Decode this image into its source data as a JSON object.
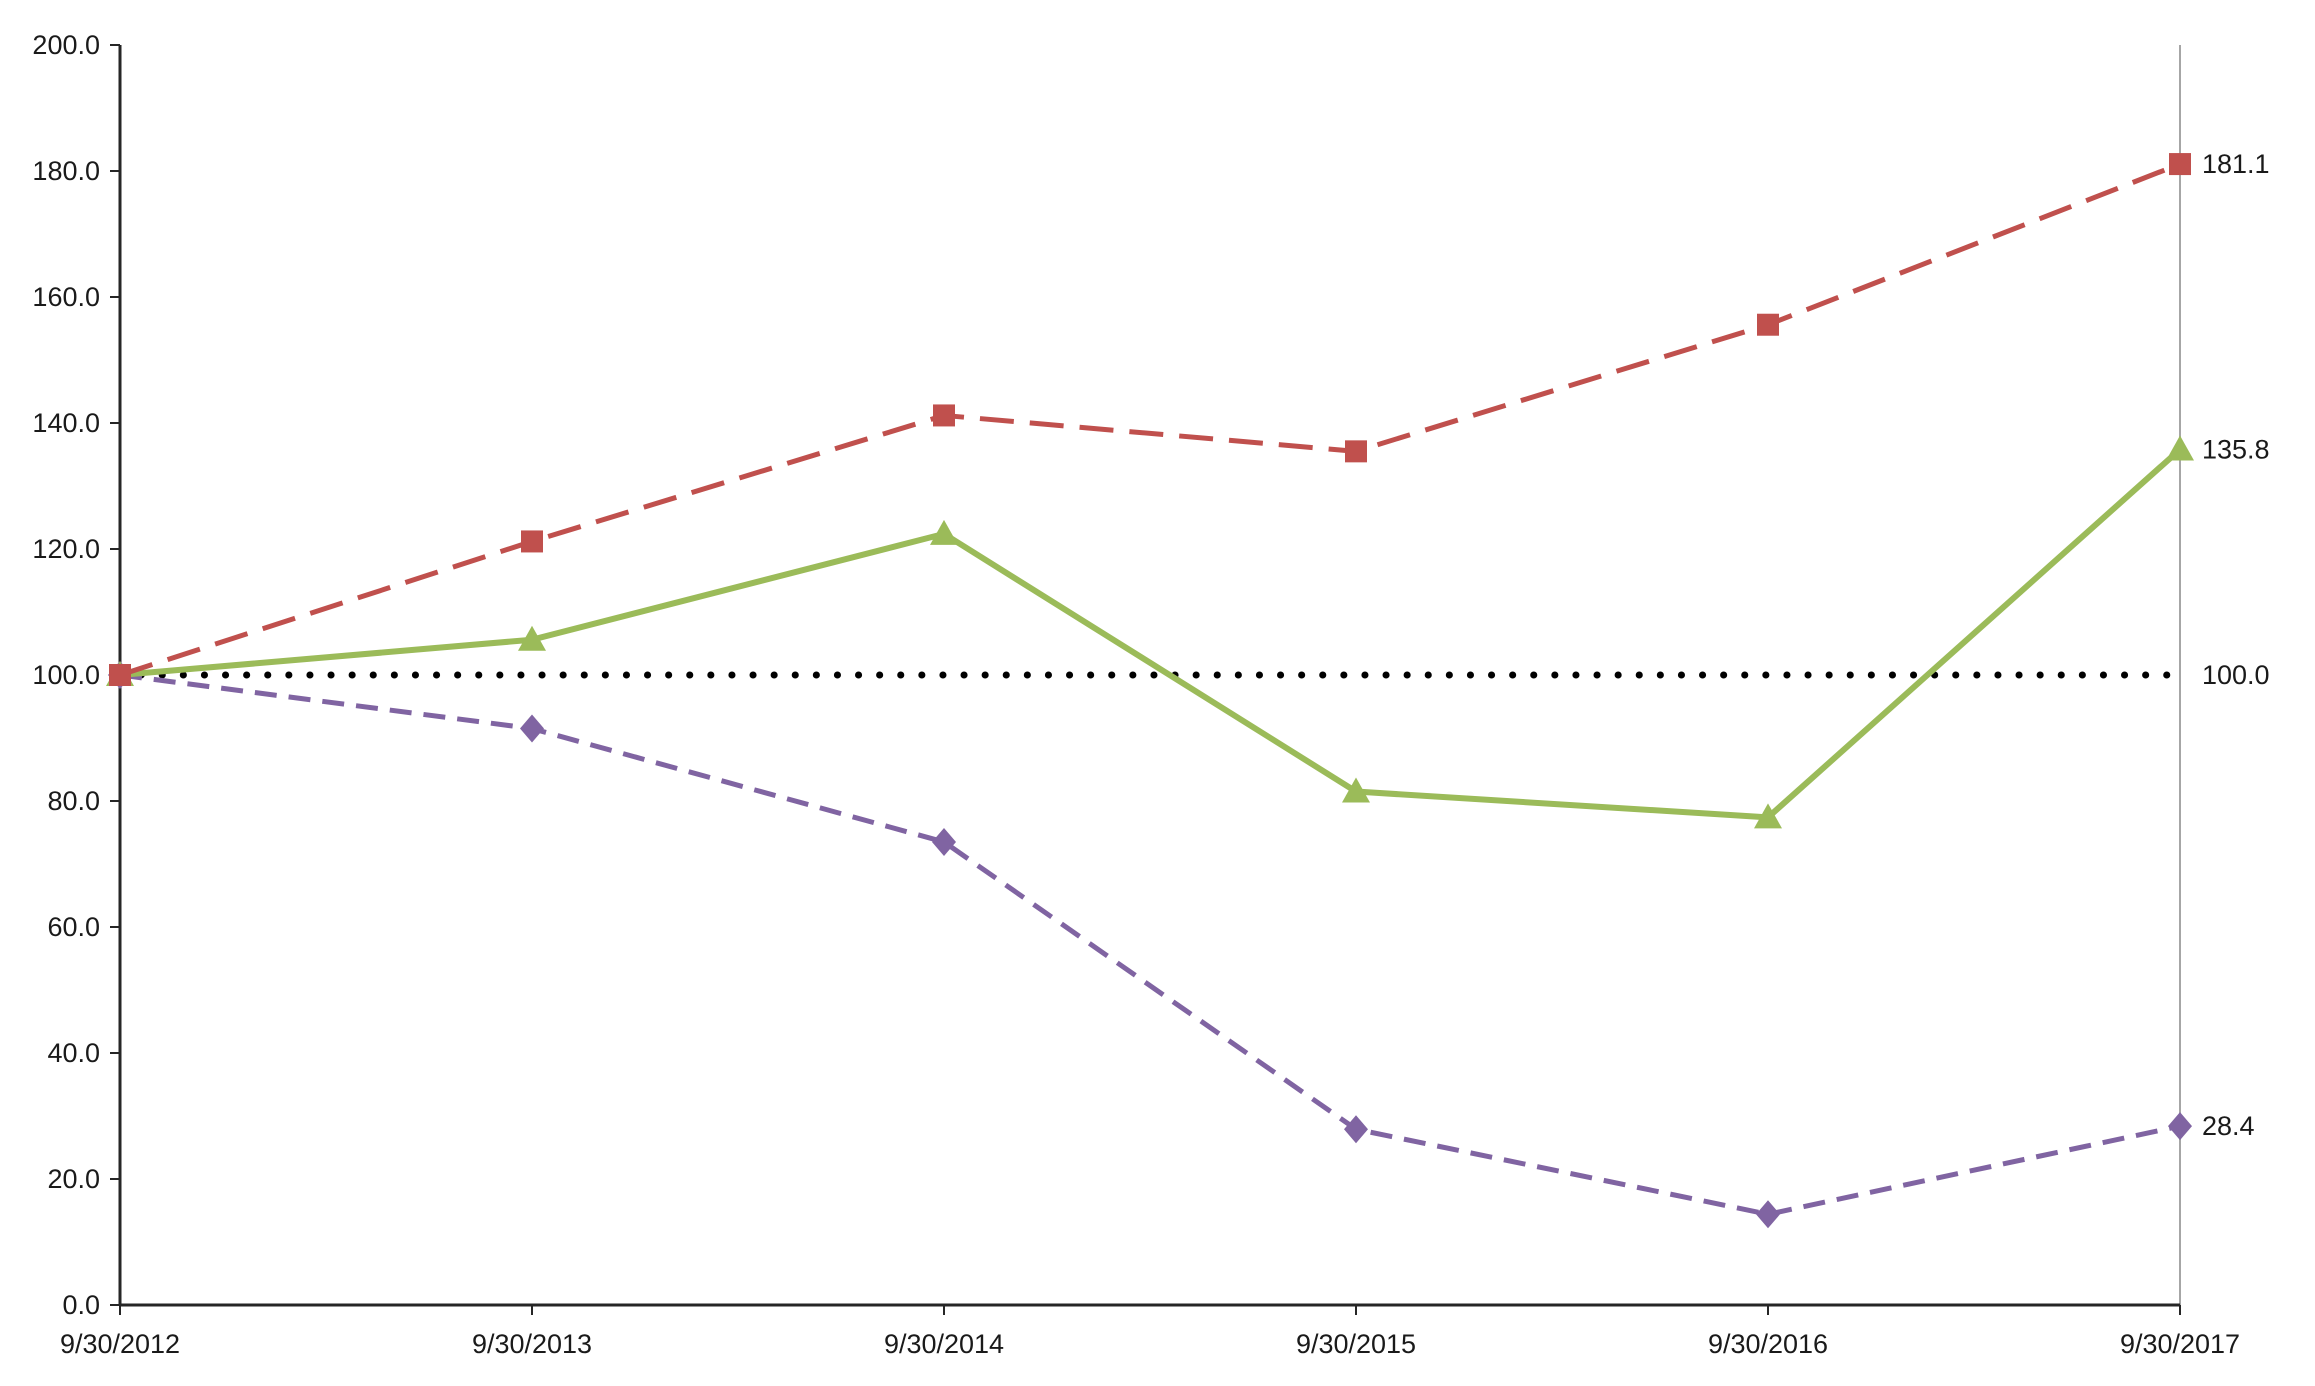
{
  "chart_data": {
    "type": "line",
    "title": "",
    "xlabel": "",
    "ylabel": "",
    "x_categories": [
      "9/30/2012",
      "9/30/2013",
      "9/30/2014",
      "9/30/2015",
      "9/30/2016",
      "9/30/2017"
    ],
    "ylim": [
      0,
      200
    ],
    "y_tick_interval": 20,
    "y_tick_labels": [
      "0.0",
      "20.0",
      "40.0",
      "60.0",
      "80.0",
      "100.0",
      "120.0",
      "140.0",
      "160.0",
      "180.0",
      "200.0"
    ],
    "grid": false,
    "legend": "none",
    "series": [
      {
        "name": "baseline-dotted-black",
        "values": [
          100.0,
          100.0,
          100.0,
          100.0,
          100.0,
          100.0
        ],
        "color": "#000000",
        "line_style": "dotted",
        "marker": "none",
        "end_label": "100.0"
      },
      {
        "name": "purple-dashed-diamonds",
        "values": [
          100.0,
          91.5,
          73.5,
          27.9,
          14.4,
          28.4
        ],
        "color": "#8064a2",
        "line_style": "short-dash",
        "marker": "diamond",
        "end_label": "28.4"
      },
      {
        "name": "green-solid-triangles",
        "values": [
          100.0,
          105.6,
          122.4,
          81.5,
          77.4,
          135.8
        ],
        "color": "#9bbb59",
        "line_style": "solid",
        "marker": "triangle",
        "end_label": "135.8"
      },
      {
        "name": "red-dashed-squares",
        "values": [
          100.0,
          121.2,
          141.2,
          135.5,
          155.6,
          181.1
        ],
        "color": "#c0504d",
        "line_style": "long-dash",
        "marker": "square",
        "end_label": "181.1"
      }
    ]
  },
  "colors": {
    "axis": "#262626",
    "plot_border": "#a6a6a6",
    "background": "#ffffff",
    "label_text": "#1a1a1a"
  }
}
